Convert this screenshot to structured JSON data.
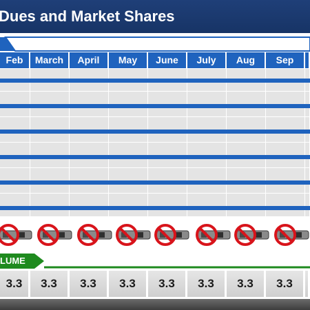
{
  "title": "Dues and Market Shares",
  "months": [
    "Feb",
    "March",
    "April",
    "May",
    "June",
    "July",
    "Aug",
    "Sep",
    ""
  ],
  "icons": [
    "prohibited-device-icon",
    "prohibited-device-icon",
    "prohibited-device-icon",
    "prohibited-device-icon",
    "prohibited-device-icon",
    "prohibited-device-icon",
    "prohibited-device-icon",
    "prohibited-device-icon"
  ],
  "volume": {
    "label": "LUME",
    "values": [
      "3.3",
      "3.3",
      "3.3",
      "3.3",
      "3.3",
      "3.3",
      "3.3",
      "3.3",
      ""
    ]
  },
  "colors": {
    "title_bg": "#1f3f78",
    "header_blue": "#1f63be",
    "volume_green": "#1e8a1e",
    "grid_gray": "#e4e4e4",
    "prohibit_red": "#d8141b"
  }
}
